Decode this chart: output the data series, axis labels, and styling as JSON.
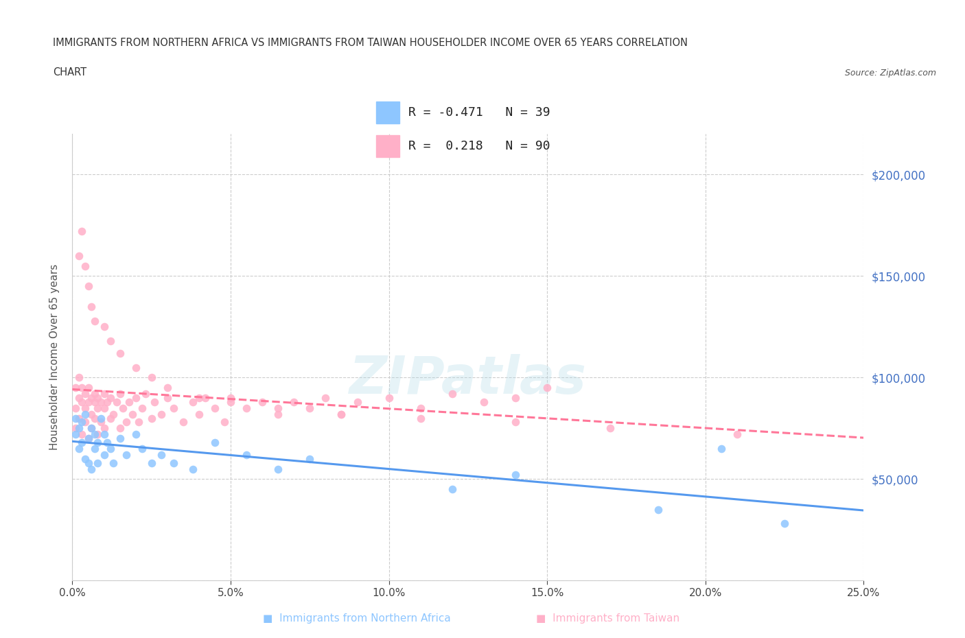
{
  "title_line1": "IMMIGRANTS FROM NORTHERN AFRICA VS IMMIGRANTS FROM TAIWAN HOUSEHOLDER INCOME OVER 65 YEARS CORRELATION",
  "title_line2": "CHART",
  "source_text": "Source: ZipAtlas.com",
  "ylabel": "Householder Income Over 65 years",
  "xlim": [
    0.0,
    0.25
  ],
  "ylim": [
    0,
    220000
  ],
  "yticks": [
    0,
    50000,
    100000,
    150000,
    200000
  ],
  "xticks": [
    0.0,
    0.05,
    0.1,
    0.15,
    0.2,
    0.25
  ],
  "color_africa": "#8EC6FF",
  "color_taiwan": "#FFB0C8",
  "color_trendline_africa": "#5599EE",
  "color_trendline_taiwan": "#FF7799",
  "R_africa": -0.471,
  "N_africa": 39,
  "R_taiwan": 0.218,
  "N_taiwan": 90,
  "grid_color": "#CCCCCC",
  "africa_x": [
    0.001,
    0.001,
    0.002,
    0.002,
    0.003,
    0.003,
    0.004,
    0.004,
    0.005,
    0.005,
    0.006,
    0.006,
    0.007,
    0.007,
    0.008,
    0.008,
    0.009,
    0.01,
    0.01,
    0.011,
    0.012,
    0.013,
    0.015,
    0.017,
    0.02,
    0.022,
    0.025,
    0.028,
    0.032,
    0.038,
    0.045,
    0.055,
    0.065,
    0.075,
    0.12,
    0.14,
    0.185,
    0.205,
    0.225
  ],
  "africa_y": [
    80000,
    72000,
    75000,
    65000,
    68000,
    78000,
    60000,
    82000,
    70000,
    58000,
    75000,
    55000,
    72000,
    65000,
    68000,
    58000,
    80000,
    62000,
    72000,
    68000,
    65000,
    58000,
    70000,
    62000,
    72000,
    65000,
    58000,
    62000,
    58000,
    55000,
    68000,
    62000,
    55000,
    60000,
    45000,
    52000,
    35000,
    65000,
    28000
  ],
  "taiwan_x": [
    0.001,
    0.001,
    0.001,
    0.002,
    0.002,
    0.002,
    0.003,
    0.003,
    0.003,
    0.004,
    0.004,
    0.004,
    0.005,
    0.005,
    0.005,
    0.006,
    0.006,
    0.006,
    0.007,
    0.007,
    0.007,
    0.008,
    0.008,
    0.008,
    0.009,
    0.009,
    0.01,
    0.01,
    0.01,
    0.011,
    0.012,
    0.012,
    0.013,
    0.014,
    0.015,
    0.015,
    0.016,
    0.017,
    0.018,
    0.019,
    0.02,
    0.021,
    0.022,
    0.023,
    0.025,
    0.026,
    0.028,
    0.03,
    0.032,
    0.035,
    0.038,
    0.04,
    0.042,
    0.045,
    0.048,
    0.05,
    0.055,
    0.06,
    0.065,
    0.07,
    0.075,
    0.08,
    0.085,
    0.09,
    0.1,
    0.11,
    0.12,
    0.13,
    0.14,
    0.15,
    0.002,
    0.003,
    0.004,
    0.005,
    0.006,
    0.007,
    0.01,
    0.012,
    0.015,
    0.02,
    0.025,
    0.03,
    0.04,
    0.05,
    0.065,
    0.085,
    0.11,
    0.14,
    0.17,
    0.21
  ],
  "taiwan_y": [
    85000,
    95000,
    75000,
    90000,
    80000,
    100000,
    88000,
    72000,
    95000,
    85000,
    92000,
    78000,
    88000,
    70000,
    95000,
    82000,
    90000,
    75000,
    88000,
    80000,
    92000,
    85000,
    72000,
    90000,
    88000,
    78000,
    85000,
    92000,
    75000,
    88000,
    80000,
    90000,
    82000,
    88000,
    75000,
    92000,
    85000,
    78000,
    88000,
    82000,
    90000,
    78000,
    85000,
    92000,
    80000,
    88000,
    82000,
    90000,
    85000,
    78000,
    88000,
    82000,
    90000,
    85000,
    78000,
    90000,
    85000,
    88000,
    82000,
    88000,
    85000,
    90000,
    82000,
    88000,
    90000,
    85000,
    92000,
    88000,
    90000,
    95000,
    160000,
    172000,
    155000,
    145000,
    135000,
    128000,
    125000,
    118000,
    112000,
    105000,
    100000,
    95000,
    90000,
    88000,
    85000,
    82000,
    80000,
    78000,
    75000,
    72000
  ]
}
